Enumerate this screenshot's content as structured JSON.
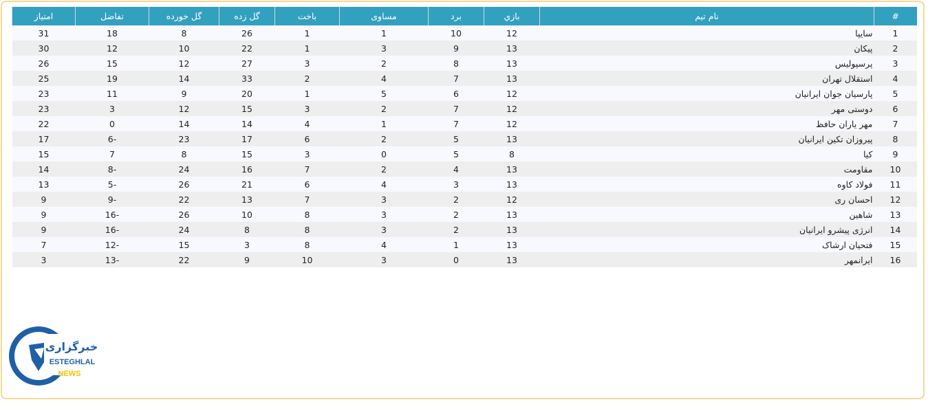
{
  "table": {
    "headers": [
      "#",
      "نام تیم",
      "بازي",
      "برد",
      "مساوی",
      "باخت",
      "گل زده",
      "گل خورده",
      "تفاضل",
      "امتیاز"
    ],
    "rows": [
      [
        "1",
        "سایپا",
        "12",
        "10",
        "1",
        "1",
        "26",
        "8",
        "18",
        "31"
      ],
      [
        "2",
        "پیکان",
        "13",
        "9",
        "3",
        "1",
        "22",
        "10",
        "12",
        "30"
      ],
      [
        "3",
        "پرسپولیس",
        "13",
        "8",
        "2",
        "3",
        "27",
        "12",
        "15",
        "26"
      ],
      [
        "4",
        "استقلال تهران",
        "13",
        "7",
        "4",
        "2",
        "33",
        "14",
        "19",
        "25"
      ],
      [
        "5",
        "پارسیان جوان ایرانیان",
        "12",
        "6",
        "5",
        "1",
        "20",
        "9",
        "11",
        "23"
      ],
      [
        "6",
        "دوستی مهر",
        "12",
        "7",
        "2",
        "3",
        "15",
        "12",
        "3",
        "23"
      ],
      [
        "7",
        "مهر یاران حافظ",
        "12",
        "7",
        "1",
        "4",
        "14",
        "14",
        "0",
        "22"
      ],
      [
        "8",
        "پیروزان تکین ایرانیان",
        "13",
        "5",
        "2",
        "6",
        "17",
        "23",
        "-6",
        "17"
      ],
      [
        "9",
        "کیا",
        "8",
        "5",
        "0",
        "3",
        "15",
        "8",
        "7",
        "15"
      ],
      [
        "10",
        "مقاومت",
        "13",
        "4",
        "2",
        "7",
        "16",
        "24",
        "-8",
        "14"
      ],
      [
        "11",
        "فولاد کاوه",
        "13",
        "3",
        "4",
        "6",
        "21",
        "26",
        "-5",
        "13"
      ],
      [
        "12",
        "احسان ری",
        "12",
        "2",
        "3",
        "7",
        "13",
        "22",
        "-9",
        "9"
      ],
      [
        "13",
        "شاهین",
        "13",
        "2",
        "3",
        "8",
        "10",
        "26",
        "-16",
        "9"
      ],
      [
        "14",
        "انرژی پیشرو ایرانیان",
        "13",
        "2",
        "3",
        "8",
        "8",
        "24",
        "-16",
        "9"
      ],
      [
        "15",
        "فتحیان ارشاک",
        "13",
        "1",
        "4",
        "8",
        "3",
        "15",
        "-12",
        "7"
      ],
      [
        "16",
        "ایرانمهر",
        "13",
        "0",
        "3",
        "10",
        "9",
        "22",
        "-13",
        "3"
      ]
    ]
  },
  "logo": {
    "persian": "خبرگزاری",
    "line1": "ESTEGHLAL",
    "line2": "NEWS"
  },
  "colors": {
    "header": "#32a0bf",
    "frame": "#f8d894",
    "logo_blue": "#1f5fa8",
    "logo_yellow": "#f2c200"
  }
}
